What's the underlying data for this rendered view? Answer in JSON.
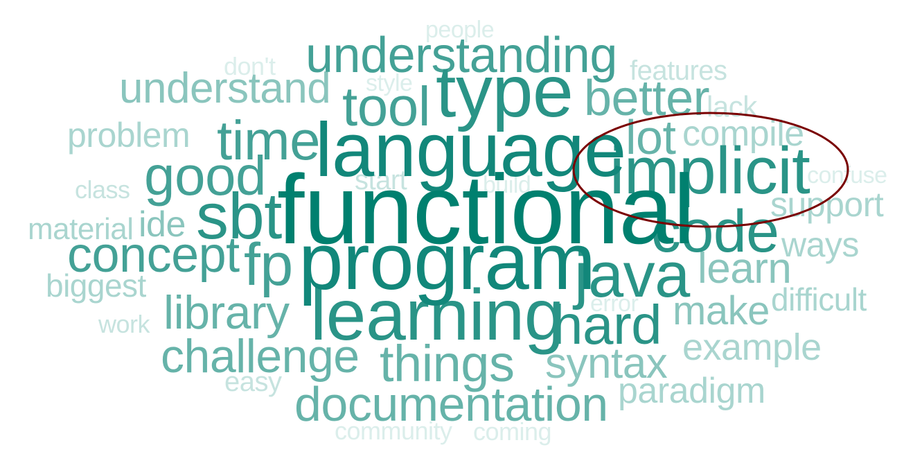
{
  "palette": {
    "c1": "#00806f",
    "c2": "#12877a",
    "c3": "#2a9487",
    "c4": "#44a196",
    "c5": "#66b3a9",
    "c6": "#8ac5bd",
    "c7": "#a9d5cf",
    "c8": "#c6e3df",
    "c9": "#dbeeeb",
    "highlight": "#7a0000"
  },
  "highlighted_word": "implicit",
  "words": [
    {
      "text": "functional"
    },
    {
      "text": "program"
    },
    {
      "text": "language"
    },
    {
      "text": "learning"
    },
    {
      "text": "type"
    },
    {
      "text": "implicit"
    },
    {
      "text": "java"
    },
    {
      "text": "sbt"
    },
    {
      "text": "code"
    },
    {
      "text": "fp"
    },
    {
      "text": "hard"
    },
    {
      "text": "understanding"
    },
    {
      "text": "tool"
    },
    {
      "text": "time"
    },
    {
      "text": "good"
    },
    {
      "text": "concept"
    },
    {
      "text": "things"
    },
    {
      "text": "documentation"
    },
    {
      "text": "challenge"
    },
    {
      "text": "better"
    },
    {
      "text": "library"
    },
    {
      "text": "lot"
    },
    {
      "text": "understand"
    },
    {
      "text": "syntax"
    },
    {
      "text": "learn"
    },
    {
      "text": "make"
    },
    {
      "text": "example"
    },
    {
      "text": "compile"
    },
    {
      "text": "support"
    },
    {
      "text": "paradigm"
    },
    {
      "text": "ide"
    },
    {
      "text": "problem"
    },
    {
      "text": "ways"
    },
    {
      "text": "difficult"
    },
    {
      "text": "biggest"
    },
    {
      "text": "material"
    },
    {
      "text": "features"
    },
    {
      "text": "lack"
    },
    {
      "text": "start"
    },
    {
      "text": "easy"
    },
    {
      "text": "class"
    },
    {
      "text": "work"
    },
    {
      "text": "error"
    },
    {
      "text": "community"
    },
    {
      "text": "coming"
    },
    {
      "text": "confuse"
    },
    {
      "text": "people"
    },
    {
      "text": "don't"
    },
    {
      "text": "style"
    },
    {
      "text": "build"
    }
  ]
}
